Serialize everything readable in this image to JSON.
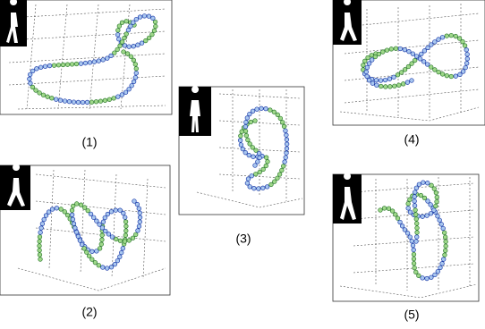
{
  "panels": [
    {
      "label": "(1)"
    },
    {
      "label": "(2)"
    },
    {
      "label": "(3)"
    },
    {
      "label": "(4)"
    },
    {
      "label": "(5)"
    }
  ]
}
